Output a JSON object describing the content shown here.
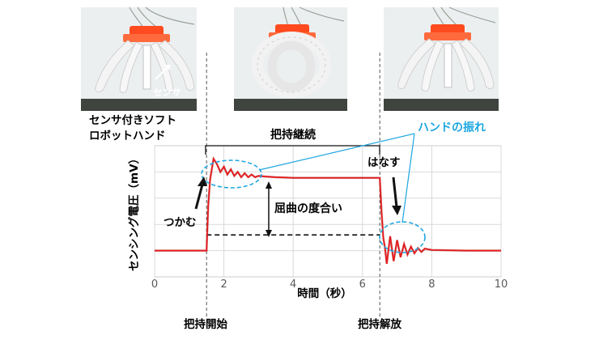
{
  "photos": [
    {
      "state": "open, before grasp",
      "label": "センサ"
    },
    {
      "state": "grasping"
    },
    {
      "state": "released"
    }
  ],
  "annotations": {
    "hand_label_line1": "センサ付きソフト",
    "hand_label_line2": "ロボットハンド",
    "hold_period": "把持継続",
    "hand_oscillation": "ハンドの振れ",
    "grab": "つかむ",
    "release": "はなす",
    "bending_degree": "屈曲の度合い",
    "grasp_start": "把持開始",
    "grasp_release": "把持解放"
  },
  "colors": {
    "signal": "#e8191c",
    "signal_dark": "#8b1a1a",
    "callout": "#1ea7e1",
    "grid": "#d9d9d9",
    "gripper_body": "#f2f2f2",
    "gripper_mount": "#ff4b1f"
  },
  "chart_data": {
    "type": "line",
    "xlabel": "時間（秒）",
    "ylabel": "センシング電圧（mV）",
    "xlim": [
      0,
      10
    ],
    "xticks": [
      "0",
      "2",
      "4",
      "6",
      "8",
      "10"
    ],
    "ylim": [
      0,
      1
    ],
    "yticks_labels": "none",
    "grid": true,
    "events": [
      {
        "x": 1.5,
        "label": "把持開始"
      },
      {
        "x": 6.5,
        "label": "把持解放"
      }
    ],
    "series": [
      {
        "style": "red solid line",
        "x": [
          0,
          1.5,
          1.55,
          1.6,
          1.7,
          1.8,
          1.9,
          2.0,
          2.1,
          2.2,
          2.3,
          2.4,
          2.5,
          2.6,
          2.7,
          2.8,
          2.9,
          3.0,
          3.2,
          3.5,
          4.0,
          5.0,
          6.0,
          6.5,
          6.55,
          6.6,
          6.65,
          6.7,
          6.8,
          6.9,
          7.0,
          7.1,
          7.2,
          7.3,
          7.4,
          7.5,
          7.6,
          7.7,
          7.8,
          8.0,
          9.0,
          10.0
        ],
        "y": [
          0.2,
          0.2,
          0.55,
          0.74,
          0.9,
          0.86,
          0.8,
          0.84,
          0.78,
          0.82,
          0.77,
          0.8,
          0.76,
          0.79,
          0.76,
          0.78,
          0.76,
          0.77,
          0.765,
          0.76,
          0.755,
          0.755,
          0.755,
          0.755,
          0.5,
          0.3,
          0.22,
          0.1,
          0.31,
          0.12,
          0.28,
          0.15,
          0.25,
          0.17,
          0.23,
          0.18,
          0.22,
          0.19,
          0.215,
          0.205,
          0.2,
          0.2
        ]
      },
      {
        "style": "black dashed baseline",
        "x": [
          1.5,
          6.5
        ],
        "y": [
          0.32,
          0.32
        ]
      }
    ]
  }
}
